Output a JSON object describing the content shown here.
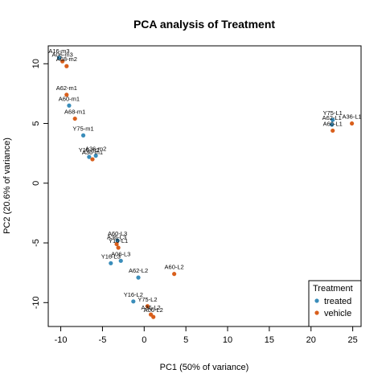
{
  "chart_data": {
    "type": "scatter",
    "title": "PCA analysis of Treatment",
    "xlabel": "PC1 (50% of variance)",
    "ylabel": "PC2 (20.6% of variance)",
    "xlim": [
      -11.5,
      26
    ],
    "ylim": [
      -12,
      11.5
    ],
    "xticks": [
      -10,
      -5,
      0,
      5,
      10,
      15,
      20,
      25
    ],
    "yticks": [
      -10,
      -5,
      0,
      5,
      10
    ],
    "grid": false,
    "legend": {
      "title": "Treatment",
      "position": "bottom-right"
    },
    "series": [
      {
        "name": "treated",
        "color": "#3A8DBA",
        "points": [
          {
            "label": "A16-m3",
            "x": -10.2,
            "y": 10.5
          },
          {
            "label": "A60-m1",
            "x": -9.0,
            "y": 6.5
          },
          {
            "label": "Y75-m1",
            "x": -7.3,
            "y": 4.0
          },
          {
            "label": "Y16-m2",
            "x": -6.6,
            "y": 2.2
          },
          {
            "label": "A36-m2",
            "x": -5.8,
            "y": 2.3
          },
          {
            "label": "Y75-L1",
            "x": 22.6,
            "y": 5.3
          },
          {
            "label": "A62-L1",
            "x": 22.5,
            "y": 4.9
          },
          {
            "label": "A60-L3",
            "x": -3.2,
            "y": -4.8
          },
          {
            "label": "Y16-L3",
            "x": -4.0,
            "y": -6.7
          },
          {
            "label": "A06-L3",
            "x": -2.8,
            "y": -6.5
          },
          {
            "label": "A62-L2",
            "x": -0.7,
            "y": -7.9
          },
          {
            "label": "Y16-L2",
            "x": -1.3,
            "y": -9.9
          }
        ]
      },
      {
        "name": "vehicle",
        "color": "#D95F1C",
        "points": [
          {
            "label": "A06-m3",
            "x": -9.8,
            "y": 10.2
          },
          {
            "label": "A68-m2",
            "x": -9.3,
            "y": 9.8
          },
          {
            "label": "A62-m1",
            "x": -9.3,
            "y": 7.4
          },
          {
            "label": "A68-m1",
            "x": -8.3,
            "y": 5.4
          },
          {
            "label": "A36-m1",
            "x": -6.2,
            "y": 2.0
          },
          {
            "label": "A36-L1",
            "x": 24.9,
            "y": 5.0
          },
          {
            "label": "A60-L1",
            "x": 22.6,
            "y": 4.4
          },
          {
            "label": "A36-L3",
            "x": -3.3,
            "y": -5.1
          },
          {
            "label": "Y16-L1",
            "x": -3.1,
            "y": -5.4
          },
          {
            "label": "A60-L2",
            "x": 3.6,
            "y": -7.6
          },
          {
            "label": "Y75-L2",
            "x": 0.4,
            "y": -10.3
          },
          {
            "label": "A36-L2",
            "x": 0.8,
            "y": -11.0
          },
          {
            "label": "A06-L2",
            "x": 1.1,
            "y": -11.2
          }
        ]
      }
    ]
  }
}
